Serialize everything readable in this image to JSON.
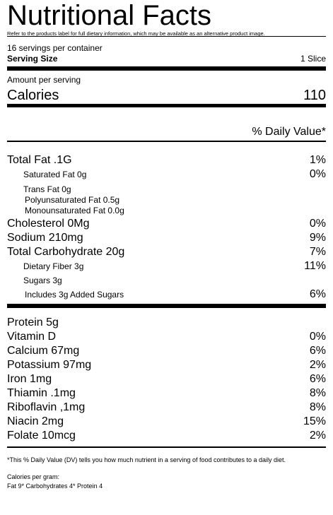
{
  "header": {
    "title": "Nutritional Facts",
    "note": "Refer to the products label for full dietary information, which may be available as an alternative product image."
  },
  "servings": {
    "per_container": "16 servings per container",
    "size_label": "Serving Size",
    "size_value": "1 Slice"
  },
  "calories": {
    "amount_label": "Amount per serving",
    "label": "Calories",
    "value": "110"
  },
  "daily_value_header": "% Daily Value*",
  "nutrients": [
    {
      "label": "Total Fat .1G",
      "dv": "1%"
    },
    {
      "label": "Saturated Fat  0g",
      "dv": "0%"
    },
    {
      "label": "Trans Fat 0g"
    },
    {
      "label": "Polyunsaturated Fat 0.5g"
    },
    {
      "label": "Monounsaturated Fat 0.0g"
    },
    {
      "label": "Cholesterol 0Mg",
      "dv": "0%"
    },
    {
      "label": "Sodium 210mg",
      "dv": "9%"
    },
    {
      "label": "Total Carbohydrate 20g",
      "dv": "7%"
    },
    {
      "label": "Dietary Fiber 3g",
      "dv": "11%"
    },
    {
      "label": "Sugars 3g"
    },
    {
      "label": "Includes 3g Added Sugars",
      "dv": "6%"
    }
  ],
  "vitamins": [
    {
      "label": "Protein 5g"
    },
    {
      "label": "Vitamin D",
      "dv": "0%"
    },
    {
      "label": "Calcium 67mg",
      "dv": "6%"
    },
    {
      "label": "Potassium 97mg",
      "dv": "2%"
    },
    {
      "label": "Iron 1mg",
      "dv": "6%"
    },
    {
      "label": "Thiamin .1mg",
      "dv": "8%"
    },
    {
      "label": "Riboflavin ,1mg",
      "dv": "8%"
    },
    {
      "label": "Niacin 2mg",
      "dv": "15%"
    },
    {
      "label": "Folate 10mcg",
      "dv": "2%"
    }
  ],
  "footer": {
    "footnote": "*This % Daily Value (DV) tells you how much nutrient in a serving of food contributes to a daily diet.",
    "calories_per_gram": "Calories per gram:",
    "breakdown": "Fat 9* Carbohydrates 4* Protein 4"
  }
}
